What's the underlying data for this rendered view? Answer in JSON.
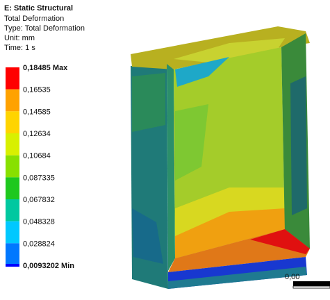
{
  "header": {
    "title": "E: Static Structural",
    "lines": [
      "Total Deformation",
      "Type: Total Deformation",
      "Unit: mm",
      "Time: 1 s"
    ]
  },
  "legend": {
    "labels": [
      "0,18485 Max",
      "0,16535",
      "0,14585",
      "0,12634",
      "0,10684",
      "0,087335",
      "0,067832",
      "0,048328",
      "0,028824",
      "0,0093202 Min"
    ],
    "colors": [
      "#ff0000",
      "#ffa200",
      "#ffd400",
      "#d8f000",
      "#88e000",
      "#1ec81e",
      "#00c8a0",
      "#00c8ff",
      "#0078ff",
      "#0000ff"
    ]
  },
  "scale_bar": {
    "label": "0,00"
  }
}
